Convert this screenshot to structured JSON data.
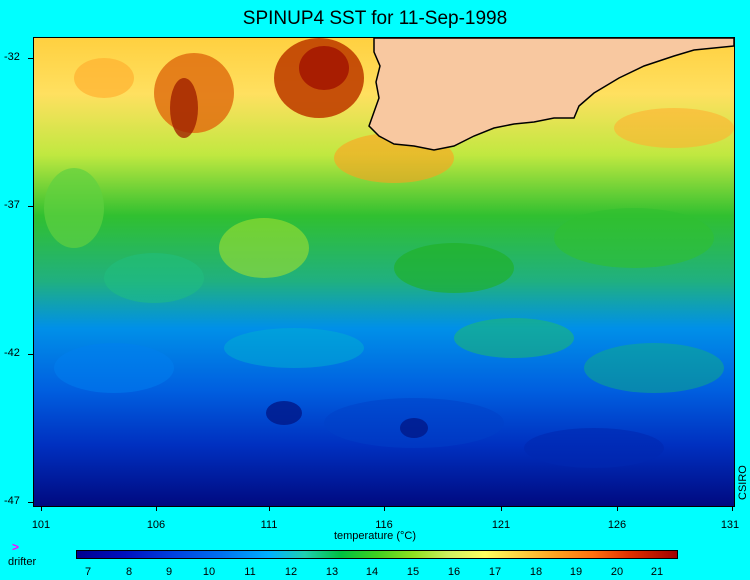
{
  "title": "SPINUP4 SST for 11-Sep-1998",
  "y_ticks": [
    "-32",
    "-37",
    "-42",
    "-47"
  ],
  "x_ticks": [
    "101",
    "106",
    "111",
    "116",
    "121",
    "126",
    "131"
  ],
  "credit": "CSIRO",
  "colorbar": {
    "label": "temperature (°C)",
    "ticks": [
      "7",
      "8",
      "9",
      "10",
      "11",
      "12",
      "13",
      "14",
      "15",
      "16",
      "17",
      "18",
      "19",
      "20",
      "21"
    ]
  },
  "legend": {
    "marker": ">",
    "label": "drifter"
  },
  "colors": {
    "background": "#00ffff",
    "land": "#f8c8a0",
    "coast": "#000000"
  }
}
